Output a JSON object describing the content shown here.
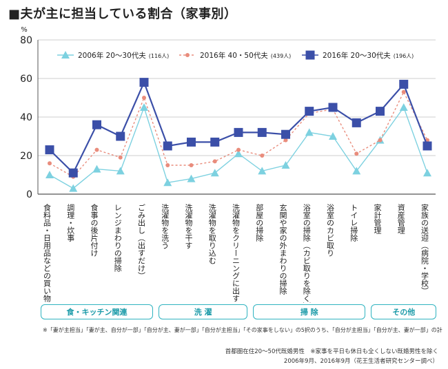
{
  "title": "■夫が主に担当している割合（家事別）",
  "chart_data": {
    "type": "line",
    "yunit": "%",
    "ylim": [
      0,
      80
    ],
    "yticks": [
      0,
      20,
      40,
      60,
      80
    ],
    "grid": true,
    "legend_placement": "top",
    "categories": [
      "食料品・日用品などの買い物",
      "調理・炊事",
      "食事の後片付け",
      "レンジまわりの掃除",
      "ごみ出し（出すだけ）",
      "洗濯物を洗う",
      "洗濯物を干す",
      "洗濯物を取り込む",
      "洗濯物をクリーニングに出す",
      "部屋の掃除",
      "玄関や家の外まわりの掃除",
      "浴室の掃除（カビ取りを除く）",
      "浴室のカビ取り",
      "トイレ掃除",
      "家計管理",
      "資産管理",
      "家族の送迎（病院・学校）"
    ],
    "series": [
      {
        "name": "2006年 20〜30代夫",
        "n": "(116人)",
        "color": "#7dd1e0",
        "marker": "triangle",
        "values": [
          10,
          3,
          13,
          12,
          45,
          6,
          8,
          11,
          21,
          12,
          15,
          32,
          30,
          12,
          28,
          45,
          11
        ]
      },
      {
        "name": "2016年 40・50代夫",
        "n": "(439人)",
        "color": "#e98c7c",
        "marker": "circle-dashed",
        "values": [
          16,
          9,
          23,
          19,
          50,
          15,
          15,
          17,
          23,
          20,
          28,
          42,
          44,
          21,
          28,
          53,
          28
        ]
      },
      {
        "name": "2016年 20〜30代夫",
        "n": "(196人)",
        "color": "#3b4fa8",
        "marker": "square",
        "values": [
          23,
          11,
          36,
          30,
          58,
          25,
          27,
          27,
          32,
          32,
          31,
          43,
          45,
          37,
          43,
          57,
          25
        ]
      }
    ],
    "groups": [
      {
        "label": "食・キッチン関連",
        "from": 0,
        "to": 4
      },
      {
        "label": "洗 濯",
        "from": 5,
        "to": 8
      },
      {
        "label": "掃 除",
        "from": 9,
        "to": 13
      },
      {
        "label": "その他",
        "from": 14,
        "to": 16
      }
    ]
  },
  "footnote": "※「妻が主担当」「妻が主、自分が一部」「自分が主、妻が一部」「自分が主担当」「その家事をしない」の5択のうち、「自分が主担当」「自分が主、妻が一部」の計",
  "source_line1": "首都圏在住20〜50代既婚男性　※家事を平日も休日も全くしない既婚男性を除く",
  "source_line2": "2006年9月、2016年9月（花王生活者研究センター調べ）"
}
